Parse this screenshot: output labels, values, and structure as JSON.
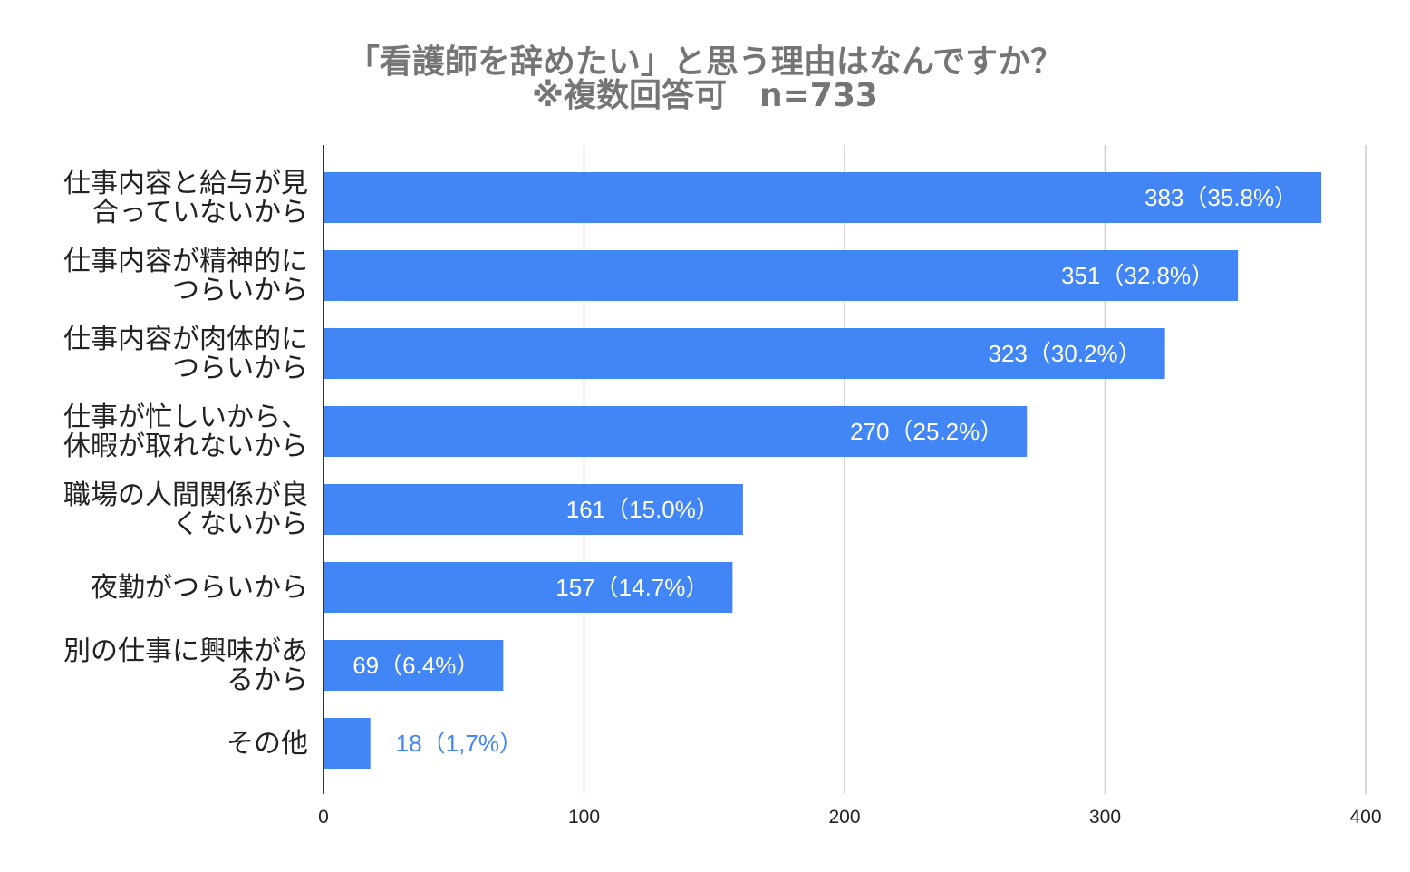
{
  "chart_data": {
    "type": "bar",
    "orientation": "horizontal",
    "title_lines": [
      "「看護師を辞めたい」と思う理由はなんですか？",
      "※複数回答可　n=733"
    ],
    "categories": [
      [
        "仕事内容と給与が見",
        "合っていないから"
      ],
      [
        "仕事内容が精神的に",
        "つらいから"
      ],
      [
        "仕事内容が肉体的に",
        "つらいから"
      ],
      [
        "仕事が忙しいから、",
        "休暇が取れないから"
      ],
      [
        "職場の人間関係が良",
        "くないから"
      ],
      [
        "夜勤がつらいから"
      ],
      [
        "別の仕事に興味があ",
        "るから"
      ],
      [
        "その他"
      ]
    ],
    "values": [
      383,
      351,
      323,
      270,
      161,
      157,
      69,
      18
    ],
    "data_labels": [
      "383（35.8%）",
      "351（32.8%）",
      "323（30.2%）",
      "270（25.2%）",
      "161（15.0%）",
      "157（14.7%）",
      "69（6.4%）",
      "18（1,7%）"
    ],
    "xlim": [
      0,
      400
    ],
    "x_ticks": [
      0,
      100,
      200,
      300,
      400
    ],
    "grid": true,
    "legend": "none",
    "bar_color": "#4285f4",
    "grid_color": "#cccccc",
    "title_color": "#757575"
  }
}
